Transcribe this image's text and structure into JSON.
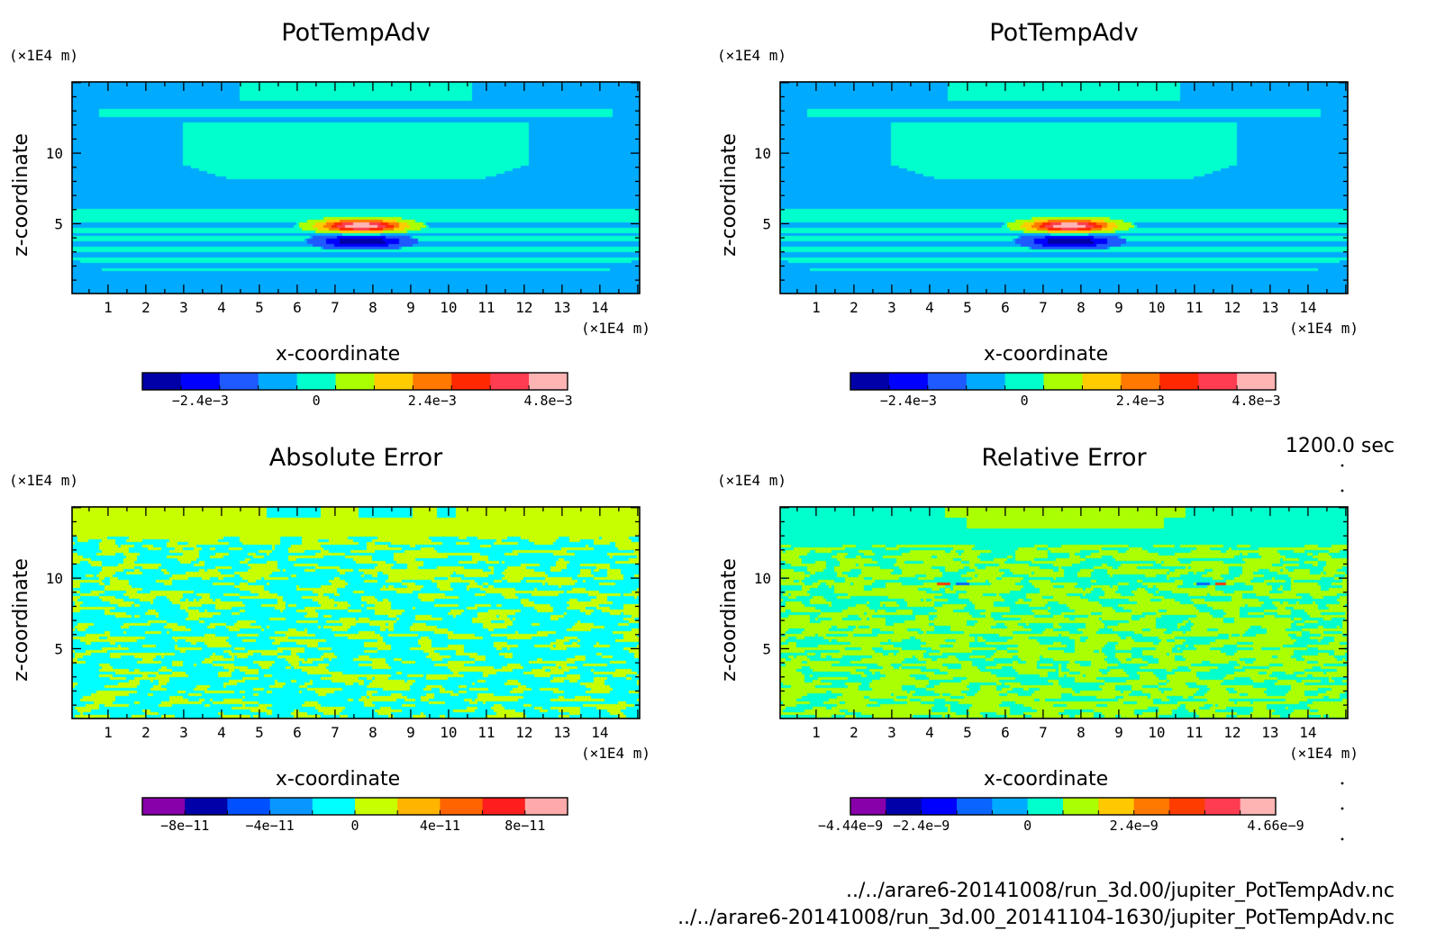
{
  "chart_data": [
    {
      "type": "heatmap",
      "title": "PotTempAdv",
      "xlabel": "x-coordinate",
      "ylabel": "z-coordinate",
      "x_unit": "(×1E4 m)",
      "y_unit": "(×1E4 m)",
      "x_ticks": [
        "1",
        "2",
        "3",
        "4",
        "5",
        "6",
        "7",
        "8",
        "9",
        "10",
        "11",
        "12",
        "13",
        "14"
      ],
      "y_ticks": [
        "5",
        "10"
      ],
      "xlim": [
        0.05,
        15.05
      ],
      "ylim": [
        0.05,
        15.05
      ],
      "pattern": "field",
      "colorbar": {
        "colors": [
          "#0000a8",
          "#0000ff",
          "#1e5aff",
          "#00aaff",
          "#00ffcc",
          "#aaff00",
          "#ffcc00",
          "#ff7800",
          "#ff2800",
          "#ff3c50",
          "#ffb4b4"
        ],
        "labels": [
          "−2.4e−3",
          "0",
          "2.4e−3",
          "4.8e−3"
        ],
        "label_index": [
          1.5,
          4.5,
          7.5,
          10.5
        ]
      }
    },
    {
      "type": "heatmap",
      "title": "PotTempAdv",
      "xlabel": "x-coordinate",
      "ylabel": "z-coordinate",
      "x_unit": "(×1E4 m)",
      "y_unit": "(×1E4 m)",
      "x_ticks": [
        "1",
        "2",
        "3",
        "4",
        "5",
        "6",
        "7",
        "8",
        "9",
        "10",
        "11",
        "12",
        "13",
        "14"
      ],
      "y_ticks": [
        "5",
        "10"
      ],
      "xlim": [
        0.05,
        15.05
      ],
      "ylim": [
        0.05,
        15.05
      ],
      "pattern": "field",
      "colorbar": {
        "colors": [
          "#0000a8",
          "#0000ff",
          "#1e5aff",
          "#00aaff",
          "#00ffcc",
          "#aaff00",
          "#ffcc00",
          "#ff7800",
          "#ff2800",
          "#ff3c50",
          "#ffb4b4"
        ],
        "labels": [
          "−2.4e−3",
          "0",
          "2.4e−3",
          "4.8e−3"
        ],
        "label_index": [
          1.5,
          4.5,
          7.5,
          10.5
        ]
      }
    },
    {
      "type": "heatmap",
      "title": "Absolute Error",
      "xlabel": "x-coordinate",
      "ylabel": "z-coordinate",
      "x_unit": "(×1E4 m)",
      "y_unit": "(×1E4 m)",
      "x_ticks": [
        "1",
        "2",
        "3",
        "4",
        "5",
        "6",
        "7",
        "8",
        "9",
        "10",
        "11",
        "12",
        "13",
        "14"
      ],
      "y_ticks": [
        "5",
        "10"
      ],
      "xlim": [
        0.05,
        15.05
      ],
      "ylim": [
        0.05,
        15.05
      ],
      "pattern": "abs",
      "colorbar": {
        "colors": [
          "#8800aa",
          "#0000a8",
          "#0050ff",
          "#0a96ff",
          "#00ffff",
          "#c8ff00",
          "#ffb400",
          "#ff6400",
          "#ff1e1e",
          "#ffaaaa"
        ],
        "labels": [
          "−8e−11",
          "−4e−11",
          "0",
          "4e−11",
          "8e−11"
        ],
        "label_index": [
          1,
          3,
          5,
          7,
          9
        ]
      }
    },
    {
      "type": "heatmap",
      "title": "Relative Error",
      "xlabel": "x-coordinate",
      "ylabel": "z-coordinate",
      "x_unit": "(×1E4 m)",
      "y_unit": "(×1E4 m)",
      "x_ticks": [
        "1",
        "2",
        "3",
        "4",
        "5",
        "6",
        "7",
        "8",
        "9",
        "10",
        "11",
        "12",
        "13",
        "14"
      ],
      "y_ticks": [
        "5",
        "10"
      ],
      "xlim": [
        0.05,
        15.05
      ],
      "ylim": [
        0.05,
        15.05
      ],
      "pattern": "rel",
      "colorbar": {
        "colors": [
          "#8800aa",
          "#0000a8",
          "#0000ff",
          "#0a64ff",
          "#00aaff",
          "#00ffcc",
          "#aaff00",
          "#ffc800",
          "#ff7800",
          "#ff3c00",
          "#ff3c50",
          "#ffb4b4"
        ],
        "labels": [
          "−4.44e−9",
          "−2.4e−9",
          "0",
          "2.4e−9",
          "4.66e−9"
        ],
        "label_index": [
          0,
          2,
          5,
          8,
          12
        ]
      }
    }
  ],
  "footer": {
    "time": "1200.0 sec",
    "file1": "../../arare6-20141008/run_3d.00/jupiter_PotTempAdv.nc",
    "file2": "../../arare6-20141008/run_3d.00_20141104-1630/jupiter_PotTempAdv.nc"
  }
}
